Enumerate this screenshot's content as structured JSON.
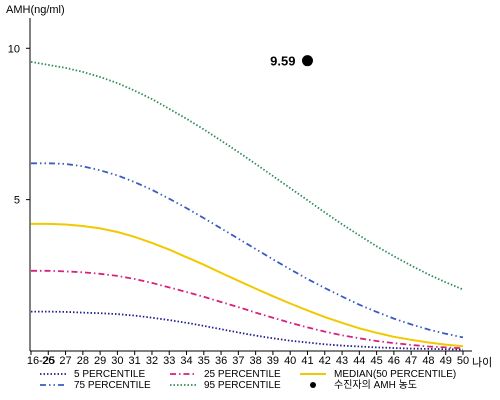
{
  "chart_data": {
    "type": "line",
    "ylabel": "AMH(ng/ml)",
    "xlabel": "나이",
    "categories": [
      "16-25",
      "26",
      "27",
      "28",
      "29",
      "30",
      "31",
      "32",
      "33",
      "34",
      "35",
      "36",
      "37",
      "38",
      "39",
      "40",
      "41",
      "42",
      "43",
      "44",
      "45",
      "46",
      "47",
      "48",
      "49",
      "50"
    ],
    "ylim": [
      0,
      11
    ],
    "yticks": [
      5,
      10
    ],
    "grid": false,
    "legend_position": "bottom",
    "series": [
      {
        "name": "5 PERCENTILE",
        "color": "#1f1f8f",
        "dash": "dotted",
        "values": [
          1.3,
          1.3,
          1.29,
          1.27,
          1.25,
          1.22,
          1.17,
          1.1,
          1.02,
          0.93,
          0.83,
          0.72,
          0.61,
          0.51,
          0.42,
          0.34,
          0.28,
          0.22,
          0.18,
          0.15,
          0.12,
          0.1,
          0.08,
          0.07,
          0.06,
          0.05
        ]
      },
      {
        "name": "25 PERCENTILE",
        "color": "#d6227e",
        "dash": "dashdot",
        "values": [
          2.65,
          2.65,
          2.63,
          2.6,
          2.55,
          2.48,
          2.38,
          2.25,
          2.1,
          1.95,
          1.79,
          1.62,
          1.45,
          1.27,
          1.1,
          0.93,
          0.78,
          0.64,
          0.52,
          0.42,
          0.33,
          0.26,
          0.2,
          0.15,
          0.12,
          0.09
        ]
      },
      {
        "name": "MEDIAN(50 PERCENTILE)",
        "color": "#f2c800",
        "dash": "solid",
        "values": [
          4.2,
          4.2,
          4.18,
          4.13,
          4.05,
          3.93,
          3.77,
          3.57,
          3.35,
          3.1,
          2.85,
          2.58,
          2.32,
          2.06,
          1.81,
          1.57,
          1.34,
          1.12,
          0.93,
          0.75,
          0.6,
          0.47,
          0.37,
          0.28,
          0.21,
          0.16
        ]
      },
      {
        "name": "75 PERCENTILE",
        "color": "#3a5dbf",
        "dash": "dashdotdot",
        "values": [
          6.2,
          6.2,
          6.18,
          6.1,
          5.97,
          5.8,
          5.58,
          5.32,
          5.03,
          4.72,
          4.39,
          4.05,
          3.71,
          3.37,
          3.03,
          2.7,
          2.38,
          2.08,
          1.8,
          1.53,
          1.29,
          1.07,
          0.88,
          0.71,
          0.57,
          0.45
        ]
      },
      {
        "name": "95 PERCENTILE",
        "color": "#2e8b57",
        "dash": "dotted",
        "values": [
          9.55,
          9.45,
          9.35,
          9.22,
          9.05,
          8.85,
          8.6,
          8.32,
          8.0,
          7.67,
          7.32,
          6.95,
          6.57,
          6.18,
          5.78,
          5.38,
          4.98,
          4.58,
          4.19,
          3.82,
          3.46,
          3.13,
          2.82,
          2.53,
          2.27,
          2.03
        ]
      }
    ],
    "points": [
      {
        "name": "수진자의 AMH 농도",
        "category": "41",
        "value": 9.59,
        "label": "9.59",
        "color": "#000000"
      }
    ]
  }
}
